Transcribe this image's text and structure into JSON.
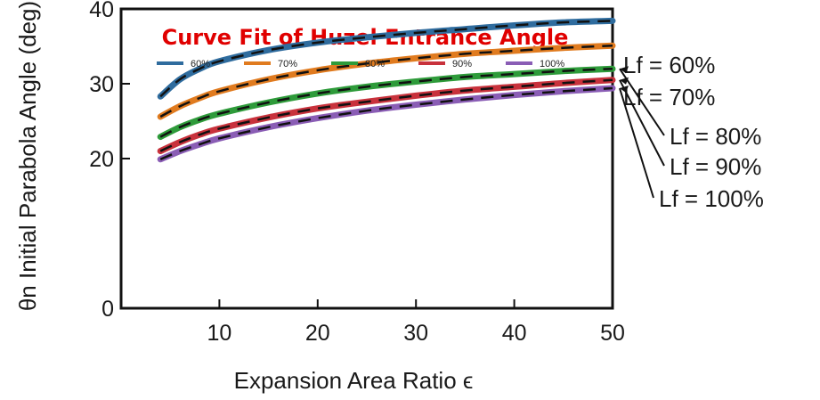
{
  "chart_data": {
    "type": "line",
    "title": "Curve Fit of Huzel Entrance Angle",
    "xlabel": "Expansion Area Ratio ϵ",
    "ylabel": "θn Initial Parabola Angle (deg)",
    "xlim": [
      0,
      50
    ],
    "ylim": [
      0,
      40
    ],
    "x_ticks": [
      "10",
      "20",
      "30",
      "40",
      "50"
    ],
    "y_ticks": [
      "0",
      "20",
      "30",
      "40"
    ],
    "legend_placement": "top",
    "x": [
      4,
      6,
      8,
      10,
      15,
      20,
      25,
      30,
      35,
      40,
      45,
      50
    ],
    "series": [
      {
        "name": "60%",
        "color": "#2f6c9e",
        "curve_label": "Lf = 60%",
        "values": [
          28.3,
          30.6,
          32.0,
          33.0,
          34.5,
          35.5,
          36.2,
          36.8,
          37.3,
          37.8,
          38.2,
          38.4
        ]
      },
      {
        "name": "70%",
        "color": "#e07b1f",
        "curve_label": "Lf = 70%",
        "values": [
          25.6,
          27.0,
          28.1,
          29.0,
          30.6,
          31.8,
          32.7,
          33.4,
          34.0,
          34.4,
          34.8,
          35.1
        ]
      },
      {
        "name": "80%",
        "color": "#2e9b3a",
        "curve_label": "Lf = 80%",
        "values": [
          22.9,
          24.2,
          25.2,
          26.0,
          27.5,
          28.7,
          29.6,
          30.3,
          30.9,
          31.3,
          31.7,
          32.0
        ]
      },
      {
        "name": "90%",
        "color": "#c8323c",
        "curve_label": "Lf = 90%",
        "values": [
          21.0,
          22.2,
          23.2,
          24.0,
          25.5,
          26.7,
          27.6,
          28.4,
          29.1,
          29.6,
          30.1,
          30.5
        ]
      },
      {
        "name": "100%",
        "color": "#8a5db5",
        "curve_label": "Lf = 100%",
        "values": [
          19.9,
          21.0,
          21.9,
          22.7,
          24.2,
          25.4,
          26.4,
          27.2,
          27.9,
          28.5,
          29.0,
          29.4
        ]
      }
    ]
  }
}
